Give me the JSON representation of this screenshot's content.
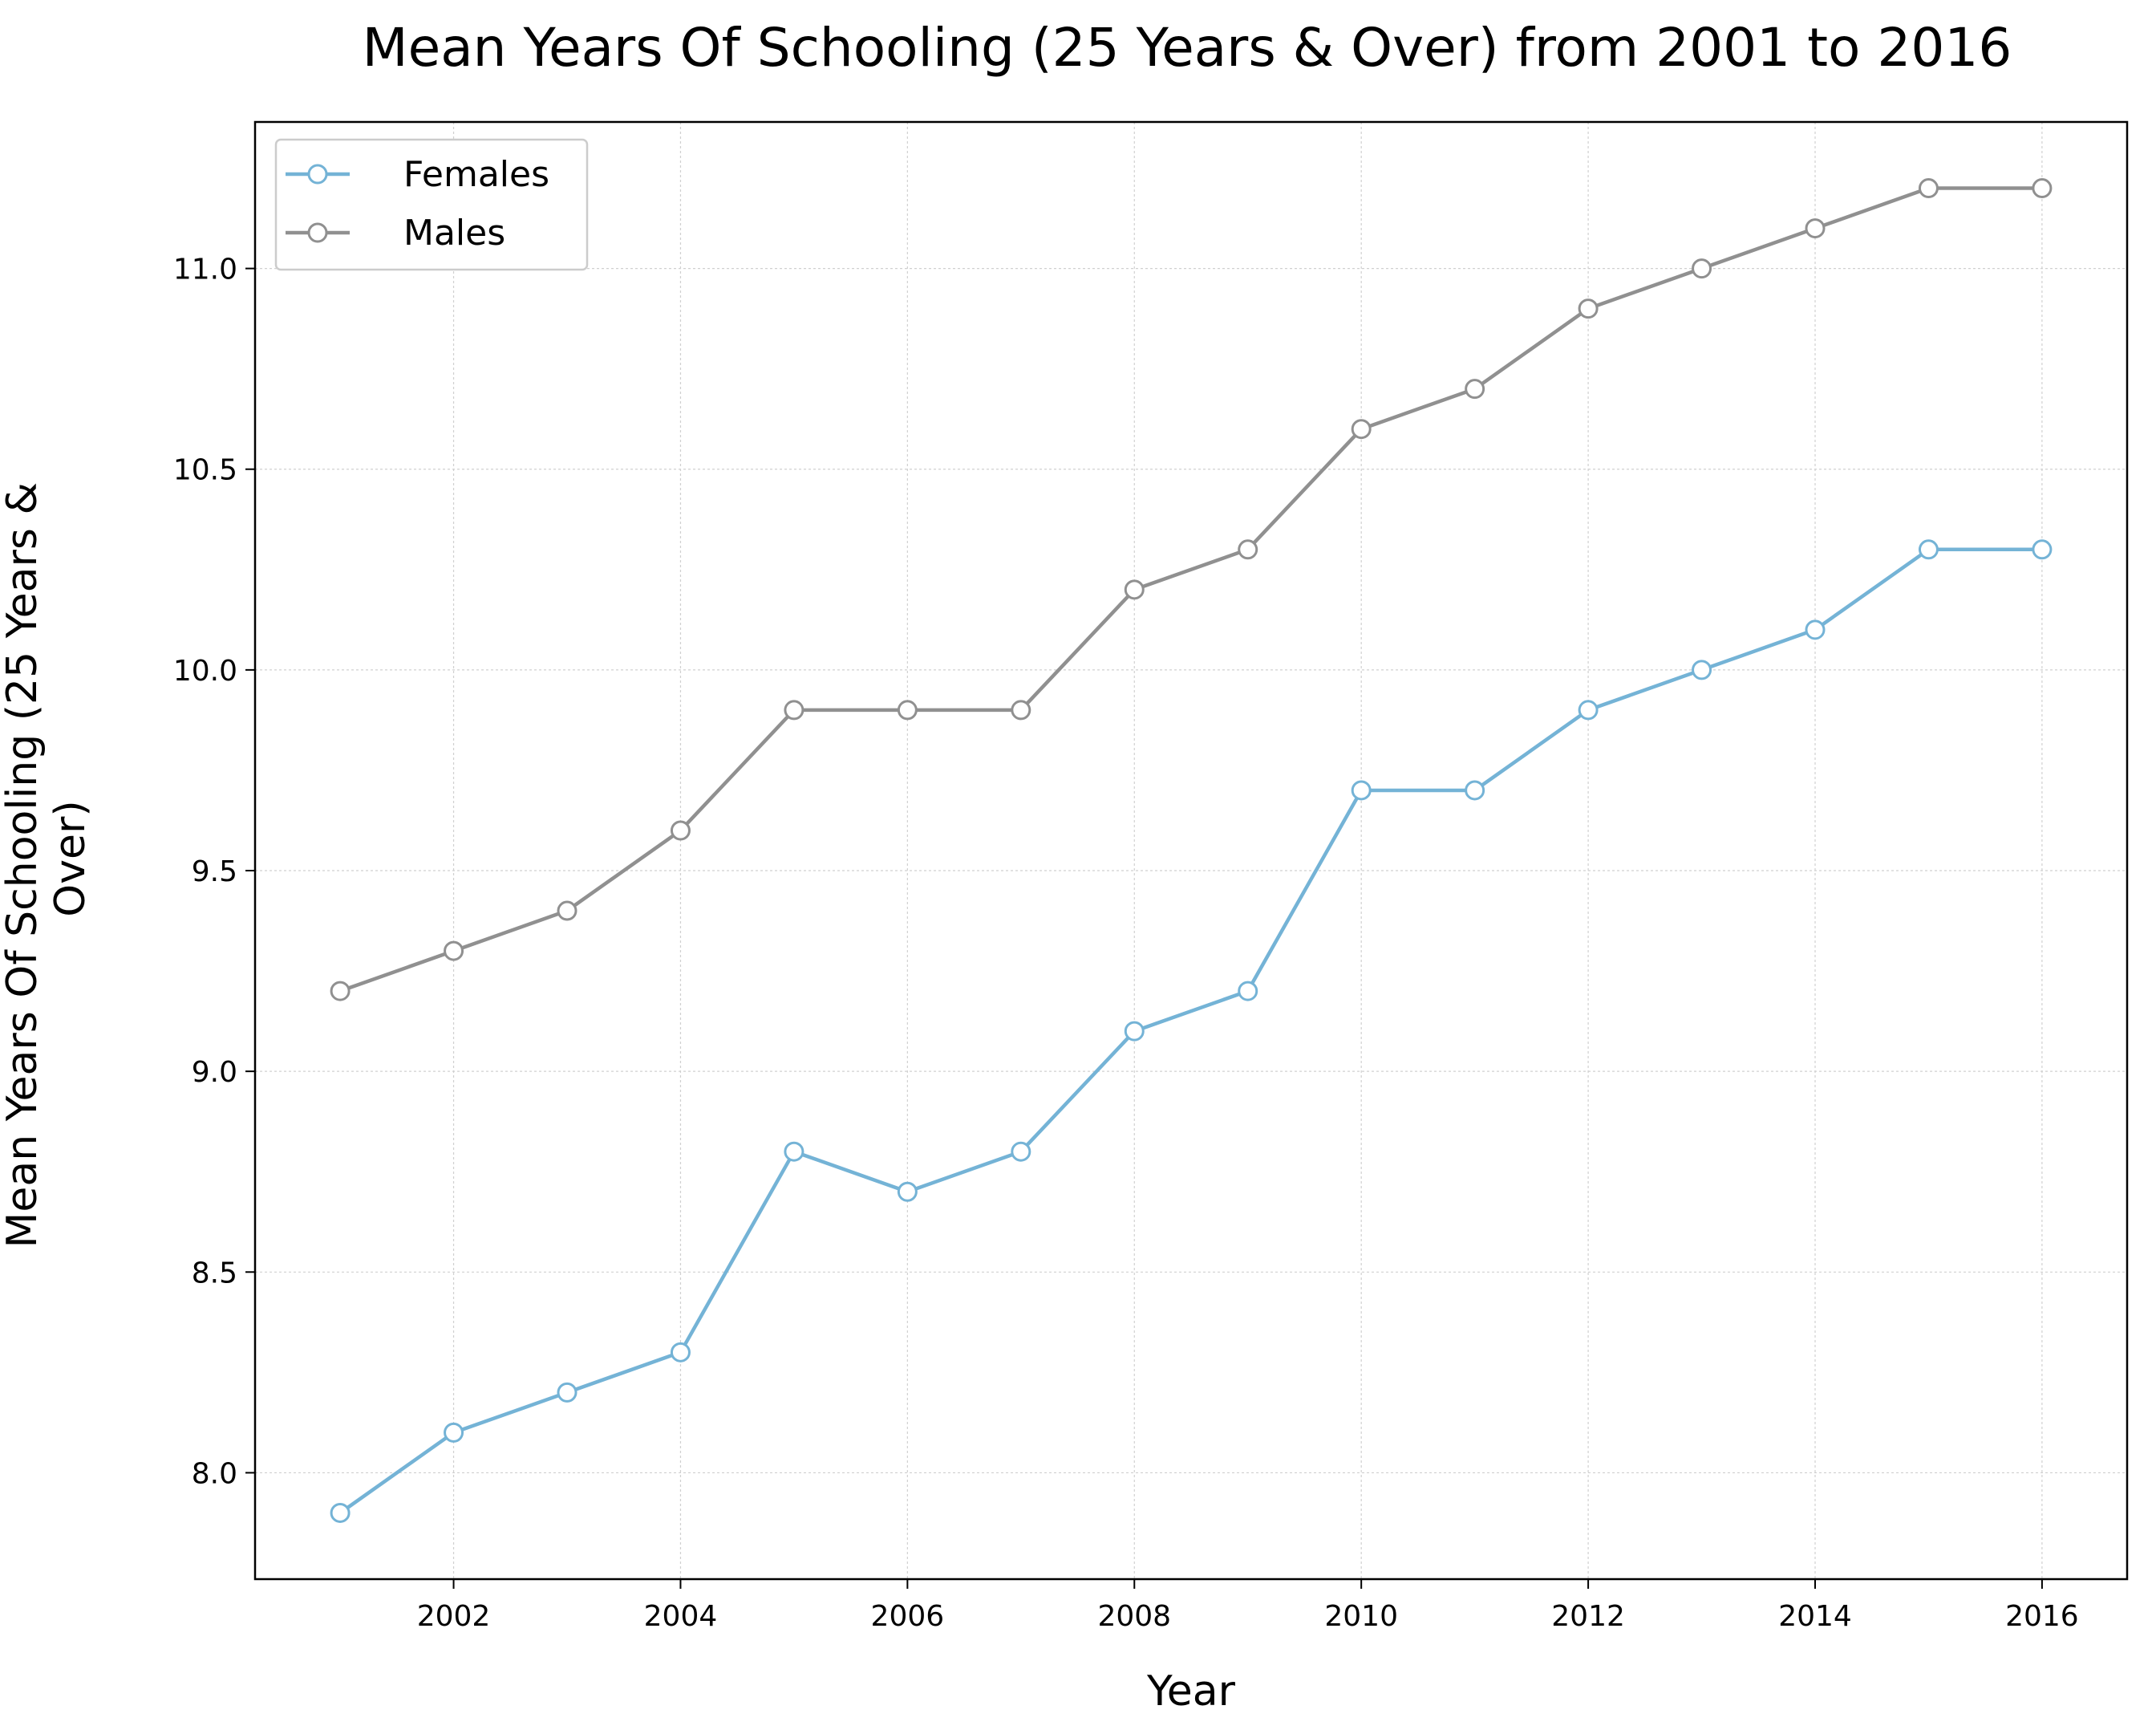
{
  "chart_data": {
    "type": "line",
    "title": "Mean Years Of Schooling (25 Years & Over) from 2001 to 2016",
    "xlabel": "Year",
    "ylabel_lines": [
      "Mean Years Of Schooling (25 Years &",
      "Over)"
    ],
    "x": [
      2001,
      2002,
      2003,
      2004,
      2005,
      2006,
      2007,
      2008,
      2009,
      2010,
      2011,
      2012,
      2013,
      2014,
      2015,
      2016
    ],
    "series": [
      {
        "name": "Females",
        "color": "#74b3d6",
        "values": [
          7.9,
          8.1,
          8.2,
          8.3,
          8.8,
          8.7,
          8.8,
          9.1,
          9.2,
          9.7,
          9.7,
          9.9,
          10.0,
          10.1,
          10.3,
          10.3
        ]
      },
      {
        "name": "Males",
        "color": "#909090",
        "values": [
          9.2,
          9.3,
          9.4,
          9.6,
          9.9,
          9.9,
          9.9,
          10.2,
          10.3,
          10.6,
          10.7,
          10.9,
          11.0,
          11.1,
          11.2,
          11.2
        ]
      }
    ],
    "xlim": [
      2000.25,
      2016.75
    ],
    "ylim": [
      7.735,
      11.365
    ],
    "xticks": [
      2002,
      2004,
      2006,
      2008,
      2010,
      2012,
      2014,
      2016
    ],
    "yticks": [
      8.0,
      8.5,
      9.0,
      9.5,
      10.0,
      10.5,
      11.0
    ],
    "ytick_labels": [
      "8.0",
      "8.5",
      "9.0",
      "9.5",
      "10.0",
      "10.5",
      "11.0"
    ],
    "grid": true,
    "legend_position": "upper-left"
  }
}
